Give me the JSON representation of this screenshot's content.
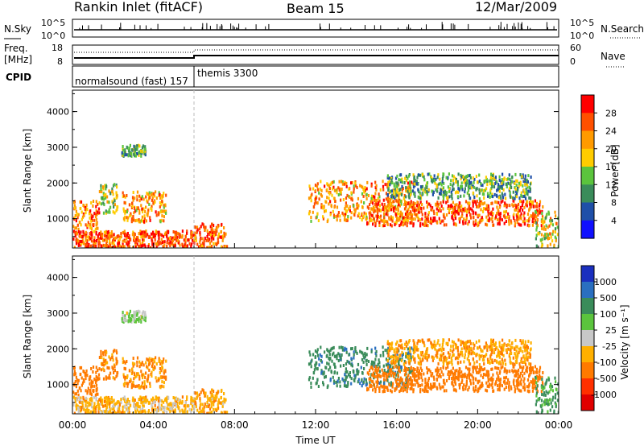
{
  "header": {
    "title": "Rankin Inlet (fitACF)",
    "beam": "Beam 15",
    "date": "12/Mar/2009"
  },
  "nsky_panel": {
    "label": "N.Sky",
    "left_ticks": [
      "10^5",
      "10^0"
    ],
    "right_ticks": [
      "10^5",
      "10^0"
    ],
    "right_label": "N.Search"
  },
  "freq_panel": {
    "label": "Freq.",
    "unit": "[MHz]",
    "left_ticks": [
      "18",
      "8"
    ],
    "right_ticks": [
      "60",
      "0"
    ],
    "right_label": "Nave"
  },
  "cpid_panel": {
    "label": "CPID",
    "program_1": "normalsound (fast) 157",
    "program_2": "themis 3300"
  },
  "power_panel": {
    "ylabel": "Slant Range [km]",
    "yticks": [
      "4000",
      "3000",
      "2000",
      "1000"
    ],
    "colorbar_title": "Power [dB]",
    "colorbar_labels": [
      "28",
      "24",
      "20",
      "16",
      "12",
      "8",
      "4"
    ],
    "colorbar_colors": [
      "#ff0000",
      "#ff5000",
      "#ff9a00",
      "#ffcc00",
      "#5bc43d",
      "#3a8c5a",
      "#1f4fa8",
      "#1010ff"
    ]
  },
  "velocity_panel": {
    "ylabel": "Slant Range [km]",
    "yticks": [
      "4000",
      "3000",
      "2000",
      "1000"
    ],
    "colorbar_title": "Velocity [m s⁻¹]",
    "colorbar_labels": [
      "1000",
      "500",
      "100",
      "25",
      "-25",
      "-100",
      "-500",
      "-1000"
    ],
    "colorbar_colors": [
      "#1a2fbf",
      "#2a6fc0",
      "#3a8c5a",
      "#5bc43d",
      "#c8c8c8",
      "#ffb000",
      "#ff7a00",
      "#ff3000",
      "#e00000"
    ]
  },
  "x_axis": {
    "ticks": [
      "00:00",
      "04:00",
      "08:00",
      "12:00",
      "16:00",
      "20:00",
      "00:00"
    ],
    "label": "Time UT"
  },
  "chart_data": {
    "type": "heatmap",
    "title": "Rankin Inlet (fitACF)",
    "xlabel": "Time UT",
    "ylabel": "Slant Range [km]",
    "xlim_hours": [
      0,
      24
    ],
    "ylim_km": [
      180,
      4600
    ],
    "cpid_switch_hour": 6.0,
    "echo_regions": [
      {
        "start_h": 0.0,
        "end_h": 1.3,
        "range_km": [
          700,
          1500
        ],
        "power_db": 24,
        "velocity": -200
      },
      {
        "start_h": 1.3,
        "end_h": 2.2,
        "range_km": [
          1150,
          2000
        ],
        "power_db": 16,
        "velocity": -150
      },
      {
        "start_h": 2.4,
        "end_h": 4.6,
        "range_km": [
          900,
          1750
        ],
        "power_db": 22,
        "velocity": -120
      },
      {
        "start_h": 2.4,
        "end_h": 3.6,
        "range_km": [
          2750,
          3050
        ],
        "power_db": 12,
        "velocity": 20
      },
      {
        "start_h": 0.0,
        "end_h": 6.0,
        "range_km": [
          180,
          650
        ],
        "power_db": 26,
        "velocity": -60
      },
      {
        "start_h": 6.0,
        "end_h": 7.6,
        "range_km": [
          180,
          850
        ],
        "power_db": 24,
        "velocity": -80
      },
      {
        "start_h": 11.6,
        "end_h": 16.8,
        "range_km": [
          900,
          2050
        ],
        "power_db": 22,
        "velocity": 400
      },
      {
        "start_h": 14.5,
        "end_h": 23.2,
        "range_km": [
          800,
          1500
        ],
        "power_db": 26,
        "velocity": -200
      },
      {
        "start_h": 15.5,
        "end_h": 22.6,
        "range_km": [
          1550,
          2250
        ],
        "power_db": 12,
        "velocity": -90
      },
      {
        "start_h": 22.8,
        "end_h": 24.0,
        "range_km": [
          180,
          1200
        ],
        "power_db": 18,
        "velocity": 120
      }
    ]
  }
}
